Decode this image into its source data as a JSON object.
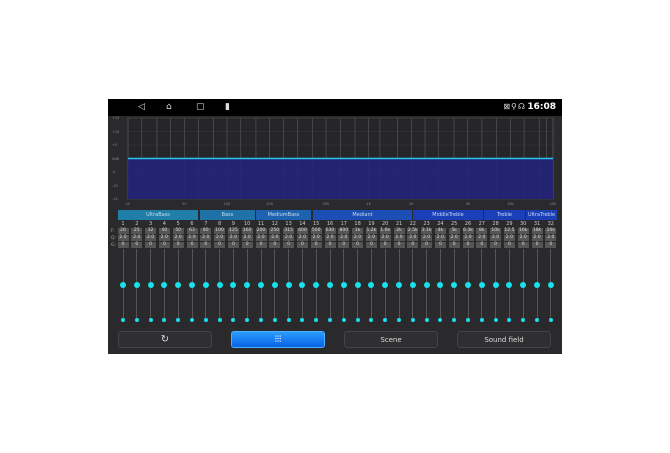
{
  "status_bar": {
    "time": "16:08",
    "nav_icons": [
      "back-icon",
      "home-icon",
      "recents-icon",
      "battery-icon"
    ],
    "status_icons": [
      "no-sim-icon",
      "location-icon",
      "gamepad-icon"
    ]
  },
  "chart": {
    "y_labels": [
      "+15",
      "+10",
      "+5",
      "0dB",
      "-5",
      "-10",
      "-15"
    ],
    "x_labels": [
      "20",
      "50",
      "100",
      "200",
      "500",
      "1K",
      "2K",
      "5K",
      "10K",
      "20K"
    ],
    "gain_db": 0,
    "fill_color": "#23237a",
    "line_color": "#27c4f0"
  },
  "groups": [
    {
      "label": "UltraBass",
      "color": "#1f7fa8"
    },
    {
      "label": "Bass",
      "color": "#1f72a8"
    },
    {
      "label": "MediumBass",
      "color": "#1e63b0"
    },
    {
      "label": "Mediant",
      "color": "#1c4fb5"
    },
    {
      "label": "MiddleTreble",
      "color": "#1a3fb8"
    },
    {
      "label": "Treble",
      "color": "#1a3fb8"
    },
    {
      "label": "UltraTreble",
      "color": "#1a3fb8"
    }
  ],
  "row_labels": {
    "f": "F:",
    "q": "Q:",
    "g": "G:"
  },
  "bands": [
    {
      "n": "1",
      "f": "20",
      "q": "2.0",
      "g": "0"
    },
    {
      "n": "2",
      "f": "25",
      "q": "2.0",
      "g": "0"
    },
    {
      "n": "3",
      "f": "32",
      "q": "2.0",
      "g": "0"
    },
    {
      "n": "4",
      "f": "40",
      "q": "2.0",
      "g": "0"
    },
    {
      "n": "5",
      "f": "50",
      "q": "2.0",
      "g": "0"
    },
    {
      "n": "6",
      "f": "63",
      "q": "2.0",
      "g": "0"
    },
    {
      "n": "7",
      "f": "80",
      "q": "2.0",
      "g": "0"
    },
    {
      "n": "8",
      "f": "100",
      "q": "2.0",
      "g": "0"
    },
    {
      "n": "9",
      "f": "125",
      "q": "2.0",
      "g": "0"
    },
    {
      "n": "10",
      "f": "160",
      "q": "2.0",
      "g": "0"
    },
    {
      "n": "11",
      "f": "200",
      "q": "2.0",
      "g": "0"
    },
    {
      "n": "12",
      "f": "250",
      "q": "2.0",
      "g": "0"
    },
    {
      "n": "13",
      "f": "315",
      "q": "2.0",
      "g": "0"
    },
    {
      "n": "14",
      "f": "400",
      "q": "2.0",
      "g": "0"
    },
    {
      "n": "15",
      "f": "500",
      "q": "2.0",
      "g": "0"
    },
    {
      "n": "16",
      "f": "630",
      "q": "2.0",
      "g": "0"
    },
    {
      "n": "17",
      "f": "800",
      "q": "2.0",
      "g": "0"
    },
    {
      "n": "18",
      "f": "1k",
      "q": "2.0",
      "g": "0"
    },
    {
      "n": "19",
      "f": "1.2k",
      "q": "2.0",
      "g": "0"
    },
    {
      "n": "20",
      "f": "1.6k",
      "q": "2.0",
      "g": "0"
    },
    {
      "n": "21",
      "f": "2k",
      "q": "2.0",
      "g": "0"
    },
    {
      "n": "22",
      "f": "2.5k",
      "q": "2.0",
      "g": "0"
    },
    {
      "n": "23",
      "f": "3.1k",
      "q": "2.0",
      "g": "0"
    },
    {
      "n": "24",
      "f": "4k",
      "q": "2.0",
      "g": "0"
    },
    {
      "n": "25",
      "f": "5k",
      "q": "2.0",
      "g": "0"
    },
    {
      "n": "26",
      "f": "6.3k",
      "q": "2.0",
      "g": "0"
    },
    {
      "n": "27",
      "f": "8k",
      "q": "2.0",
      "g": "0"
    },
    {
      "n": "28",
      "f": "10k",
      "q": "2.0",
      "g": "0"
    },
    {
      "n": "29",
      "f": "12.5",
      "q": "2.0",
      "g": "0"
    },
    {
      "n": "30",
      "f": "16k",
      "q": "2.0",
      "g": "0"
    },
    {
      "n": "31",
      "f": "18k",
      "q": "2.0",
      "g": "0"
    },
    {
      "n": "32",
      "f": "20k",
      "q": "2.0",
      "g": "0"
    }
  ],
  "buttons": {
    "reset_icon": "reset-icon",
    "eq_icon": "equalizer-icon",
    "scene": "Scene",
    "sound_field": "Sound field"
  }
}
